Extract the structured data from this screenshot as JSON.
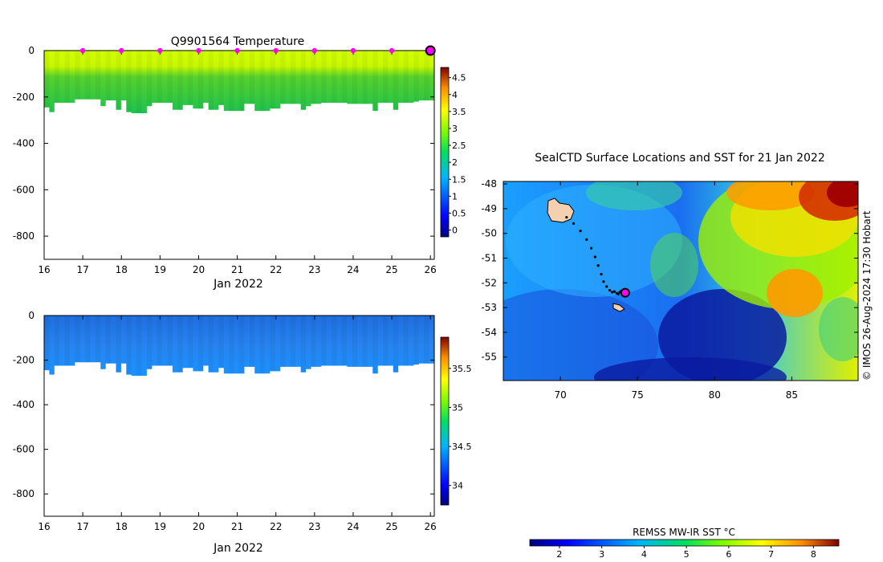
{
  "chart_data": [
    {
      "type": "heatmap",
      "title": "Q9901564  Temperature",
      "xlabel": "Jan 2022",
      "ylabel": "",
      "x_ticks": [
        16,
        17,
        18,
        19,
        20,
        21,
        22,
        23,
        24,
        25,
        26
      ],
      "x_range": [
        16,
        26.1
      ],
      "y_ticks": [
        0,
        -200,
        -400,
        -600,
        -800
      ],
      "y_range": [
        -900,
        0
      ],
      "profile_markers_x": [
        17,
        18,
        19,
        20,
        21,
        22,
        23,
        24,
        25
      ],
      "current_marker_x": 26,
      "colorbar": {
        "ticks": [
          0,
          0.5,
          1,
          1.5,
          2,
          2.5,
          3,
          3.5,
          4,
          4.5
        ],
        "range": [
          -0.2,
          4.8
        ]
      },
      "depth_profile": [
        -245,
        -265,
        -225,
        -225,
        -225,
        -225,
        -210,
        -210,
        -210,
        -210,
        -210,
        -240,
        -215,
        -215,
        -255,
        -215,
        -265,
        -270,
        -270,
        -270,
        -240,
        -225,
        -225,
        -225,
        -225,
        -255,
        -255,
        -235,
        -235,
        -250,
        -250,
        -225,
        -255,
        -255,
        -235,
        -260,
        -260,
        -260,
        -260,
        -230,
        -230,
        -260,
        -260,
        -260,
        -250,
        -250,
        -230,
        -230,
        -230,
        -230,
        -255,
        -240,
        -230,
        -230,
        -225,
        -225,
        -225,
        -225,
        -225,
        -230,
        -230,
        -230,
        -230,
        -230,
        -260,
        -225,
        -225,
        -225,
        -255,
        -225,
        -225,
        -225,
        -220,
        -215,
        -215,
        -215
      ]
    },
    {
      "type": "heatmap",
      "title": "",
      "xlabel": "Jan 2022",
      "ylabel": "",
      "x_ticks": [
        16,
        17,
        18,
        19,
        20,
        21,
        22,
        23,
        24,
        25,
        26
      ],
      "x_range": [
        16,
        26.1
      ],
      "y_ticks": [
        0,
        -200,
        -400,
        -600,
        -800
      ],
      "y_range": [
        -900,
        0
      ],
      "colorbar": {
        "ticks": [
          34,
          34.5,
          35,
          35.5
        ],
        "range": [
          33.75,
          35.9
        ]
      }
    },
    {
      "type": "heatmap",
      "title": "SealCTD Surface Locations and SST for 21 Jan 2022",
      "xlabel": "",
      "ylabel": "",
      "x_ticks": [
        70,
        75,
        80,
        85
      ],
      "x_range": [
        66.3,
        89.3
      ],
      "y_ticks": [
        -48,
        -49,
        -50,
        -51,
        -52,
        -53,
        -54,
        -55
      ],
      "y_range": [
        -55.95,
        -47.9
      ],
      "colorbar_label": "REMSS MW-IR SST °C",
      "colorbar": {
        "ticks": [
          2,
          3,
          4,
          5,
          6,
          7,
          8
        ],
        "range": [
          1.3,
          8.6
        ]
      },
      "credit": "© IMOS 26-Aug-2024 17:30 Hobart",
      "track_lon": [
        70.4,
        70.85,
        71.3,
        71.7,
        72.0,
        72.25,
        72.45,
        72.65,
        72.8,
        73.0,
        73.2,
        73.35,
        73.5,
        73.65,
        73.75,
        73.85,
        73.95,
        74.05,
        74.15
      ],
      "track_lat": [
        -49.35,
        -49.6,
        -49.9,
        -50.25,
        -50.6,
        -50.95,
        -51.3,
        -51.65,
        -51.95,
        -52.15,
        -52.3,
        -52.38,
        -52.35,
        -52.42,
        -52.45,
        -52.38,
        -52.33,
        -52.35,
        -52.4
      ],
      "current_location": [
        74.2,
        -52.4
      ]
    }
  ]
}
